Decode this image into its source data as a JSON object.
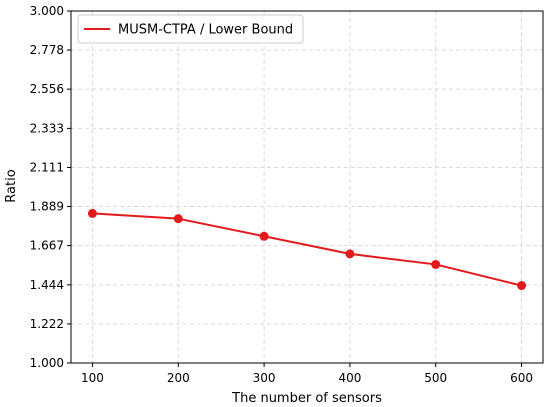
{
  "chart_data": {
    "type": "line",
    "title": "",
    "xlabel": "The number of sensors",
    "ylabel": "Ratio",
    "x": [
      100,
      200,
      300,
      400,
      500,
      600
    ],
    "xticks": [
      "100",
      "200",
      "300",
      "400",
      "500",
      "600"
    ],
    "xlim": [
      75,
      625
    ],
    "ylim": [
      1.0,
      3.0
    ],
    "yticks": [
      "1.000",
      "1.222",
      "1.444",
      "1.667",
      "1.889",
      "2.111",
      "2.333",
      "2.556",
      "2.778",
      "3.000"
    ],
    "grid": true,
    "legend_position": "top-left",
    "series": [
      {
        "name": "MUSM-CTPA / Lower Bound",
        "color": "#e31a1c",
        "marker": "circle",
        "values": [
          1.85,
          1.82,
          1.72,
          1.62,
          1.56,
          1.44
        ]
      }
    ]
  }
}
